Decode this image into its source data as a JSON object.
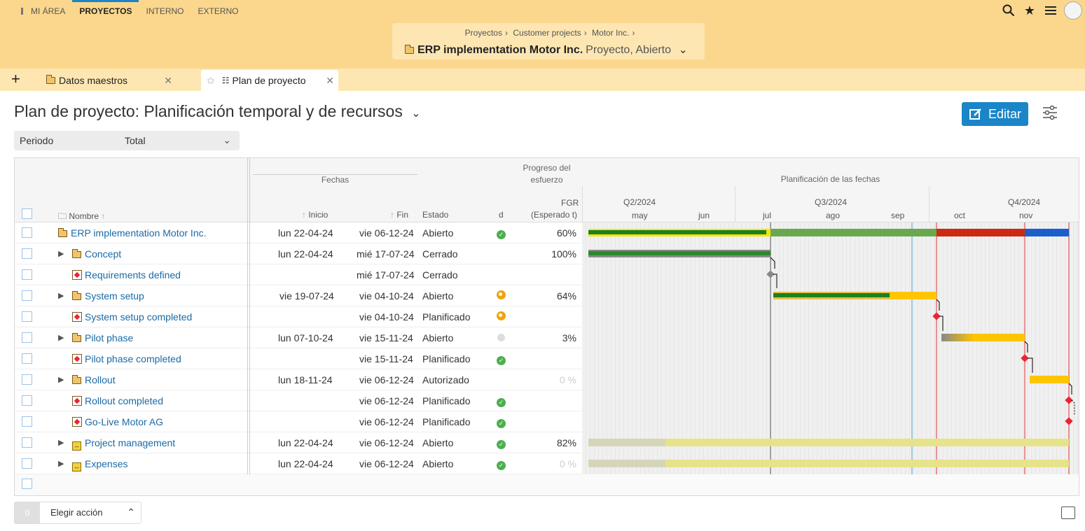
{
  "nav": {
    "items": [
      {
        "label": "MI ÁREA"
      },
      {
        "label": "PROYECTOS"
      },
      {
        "label": "INTERNO"
      },
      {
        "label": "EXTERNO"
      }
    ]
  },
  "context": {
    "breadcrumbs": [
      "Proyectos",
      "Customer projects",
      "Motor Inc."
    ],
    "title": "ERP implementation Motor Inc.",
    "subtitle": "Proyecto, Abierto"
  },
  "tabs": [
    {
      "label": "Datos maestros"
    },
    {
      "label": "Plan de proyecto"
    }
  ],
  "page": {
    "title": "Plan de proyecto: Planificación temporal y de recursos",
    "edit_label": "Editar",
    "period_label": "Periodo",
    "period_value": "Total"
  },
  "table": {
    "groups": {
      "dates": "Fechas",
      "effort": "Progreso del esfuerzo",
      "planning": "Planificación de las fechas"
    },
    "columns": {
      "name": "Nombre",
      "start": "Inicio",
      "end": "Fin",
      "status": "Estado",
      "d": "d",
      "fgr": "FGR",
      "fgr_sub": "(Esperado t)"
    },
    "quarters": [
      "Q2/2024",
      "Q3/2024",
      "Q4/2024"
    ],
    "months": [
      "may",
      "jun",
      "jul",
      "ago",
      "sep",
      "oct",
      "nov"
    ],
    "rows": [
      {
        "name": "ERP implementation Motor Inc.",
        "start": "lun 22-04-24",
        "end": "vie 06-12-24",
        "status": "Abierto",
        "ind": "ok",
        "pct": "60%"
      },
      {
        "name": "Concept",
        "start": "lun 22-04-24",
        "end": "mié 17-07-24",
        "status": "Cerrado",
        "ind": "",
        "pct": "100%"
      },
      {
        "name": "Requirements defined",
        "start": "",
        "end": "mié 17-07-24",
        "status": "Cerrado",
        "ind": "",
        "pct": ""
      },
      {
        "name": "System setup",
        "start": "vie 19-07-24",
        "end": "vie 04-10-24",
        "status": "Abierto",
        "ind": "warn",
        "pct": "64%"
      },
      {
        "name": "System setup completed",
        "start": "",
        "end": "vie 04-10-24",
        "status": "Planificado",
        "ind": "warn",
        "pct": ""
      },
      {
        "name": "Pilot phase",
        "start": "lun 07-10-24",
        "end": "vie 15-11-24",
        "status": "Abierto",
        "ind": "grey",
        "pct": "3%"
      },
      {
        "name": "Pilot phase completed",
        "start": "",
        "end": "vie 15-11-24",
        "status": "Planificado",
        "ind": "ok",
        "pct": ""
      },
      {
        "name": "Rollout",
        "start": "lun 18-11-24",
        "end": "vie 06-12-24",
        "status": "Autorizado",
        "ind": "",
        "pct": "0 %"
      },
      {
        "name": "Rollout completed",
        "start": "",
        "end": "vie 06-12-24",
        "status": "Planificado",
        "ind": "ok",
        "pct": ""
      },
      {
        "name": "Go-Live Motor AG",
        "start": "",
        "end": "vie 06-12-24",
        "status": "Planificado",
        "ind": "ok",
        "pct": ""
      },
      {
        "name": "Project management",
        "start": "lun 22-04-24",
        "end": "vie 06-12-24",
        "status": "Abierto",
        "ind": "ok",
        "pct": "82%"
      },
      {
        "name": "Expenses",
        "start": "lun 22-04-24",
        "end": "vie 06-12-24",
        "status": "Abierto",
        "ind": "ok",
        "pct": "0 %"
      }
    ]
  },
  "footer": {
    "selected_count": "0",
    "action_label": "Elegir acción"
  },
  "colors": {
    "accent": "#1a85c7",
    "header_bg": "#fbd78d",
    "tab_bg": "#fde6b2"
  }
}
